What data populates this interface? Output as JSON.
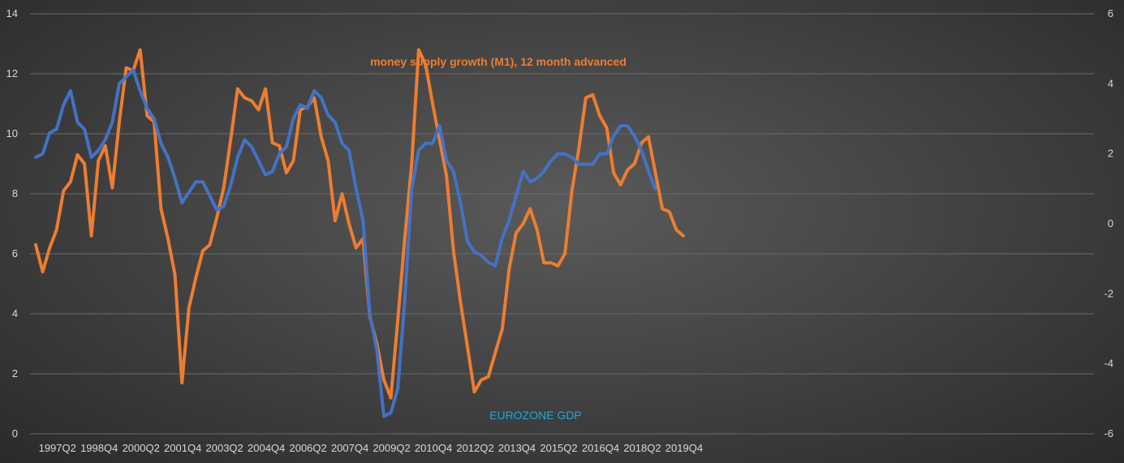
{
  "chart_data": {
    "type": "line",
    "grid": "horizontal",
    "colors": {
      "m1": "#ed7d31",
      "gdp": "#4472c4",
      "gdp_label": "#1ea7e1",
      "m1_label": "#ed7d31"
    },
    "left_axis": {
      "ylim": [
        0,
        14
      ],
      "ticks": [
        "0",
        "2",
        "4",
        "6",
        "8",
        "10",
        "12",
        "14"
      ]
    },
    "right_axis": {
      "ylim": [
        -6,
        6
      ],
      "ticks": [
        "-6",
        "-4",
        "-2",
        "0",
        "2",
        "4",
        "6"
      ]
    },
    "x_labels": [
      "1997Q2",
      "1998Q4",
      "2000Q2",
      "2001Q4",
      "2003Q2",
      "2004Q4",
      "2006Q2",
      "2007Q4",
      "2009Q2",
      "2010Q4",
      "2012Q2",
      "2013Q4",
      "2015Q2",
      "2016Q4",
      "2018Q2",
      "2019Q4"
    ],
    "annotations": {
      "m1": "money supply growth (M1), 12 month advanced",
      "gdp": "EUROZONE GDP"
    },
    "series": [
      {
        "key": "m1",
        "axis": "left",
        "start_index": 0,
        "values": [
          6.3,
          5.4,
          6.2,
          6.8,
          8.1,
          8.4,
          9.3,
          9.0,
          6.6,
          9.1,
          9.6,
          8.2,
          10.4,
          12.2,
          12.1,
          12.8,
          10.6,
          10.4,
          7.5,
          6.5,
          5.3,
          1.7,
          4.2,
          5.2,
          6.1,
          6.3,
          7.2,
          8.2,
          9.8,
          11.5,
          11.2,
          11.1,
          10.8,
          11.5,
          9.7,
          9.6,
          8.7,
          9.1,
          10.8,
          10.9,
          11.2,
          9.9,
          9.1,
          7.1,
          8.0,
          7.0,
          6.2,
          6.5,
          3.9,
          3.0,
          1.8,
          1.2,
          3.8,
          6.5,
          9.0,
          12.8,
          12.3,
          11.0,
          9.8,
          8.6,
          6.1,
          4.4,
          2.9,
          1.4,
          1.8,
          1.9,
          2.7,
          3.5,
          5.5,
          6.7,
          7.0,
          7.5,
          6.8,
          5.7,
          5.7,
          5.6,
          6.0,
          8.1,
          9.5,
          11.2,
          11.3,
          10.6,
          10.2,
          8.7,
          8.3,
          8.8,
          9.0,
          9.7,
          9.9,
          8.7,
          7.5,
          7.4,
          6.8,
          6.6
        ]
      },
      {
        "key": "gdp",
        "axis": "right",
        "start_index": 0,
        "values": [
          1.9,
          2.0,
          2.6,
          2.7,
          3.4,
          3.8,
          2.9,
          2.7,
          1.9,
          2.1,
          2.4,
          2.9,
          4.0,
          4.2,
          4.4,
          3.8,
          3.3,
          3.0,
          2.3,
          1.9,
          1.3,
          0.6,
          0.9,
          1.2,
          1.2,
          0.8,
          0.4,
          0.5,
          1.1,
          1.9,
          2.4,
          2.2,
          1.8,
          1.4,
          1.5,
          2.0,
          2.2,
          3.0,
          3.4,
          3.3,
          3.8,
          3.6,
          3.1,
          2.9,
          2.3,
          2.1,
          1.0,
          0.1,
          -2.6,
          -3.6,
          -5.5,
          -5.4,
          -4.7,
          -2.2,
          1.0,
          2.1,
          2.3,
          2.3,
          2.8,
          1.8,
          1.5,
          0.6,
          -0.5,
          -0.8,
          -0.9,
          -1.1,
          -1.2,
          -0.4,
          0.1,
          0.8,
          1.5,
          1.2,
          1.3,
          1.5,
          1.8,
          2.0,
          2.0,
          1.9,
          1.7,
          1.7,
          1.7,
          2.0,
          2.0,
          2.5,
          2.8,
          2.8,
          2.5,
          2.1,
          1.5,
          1.0
        ]
      }
    ]
  }
}
